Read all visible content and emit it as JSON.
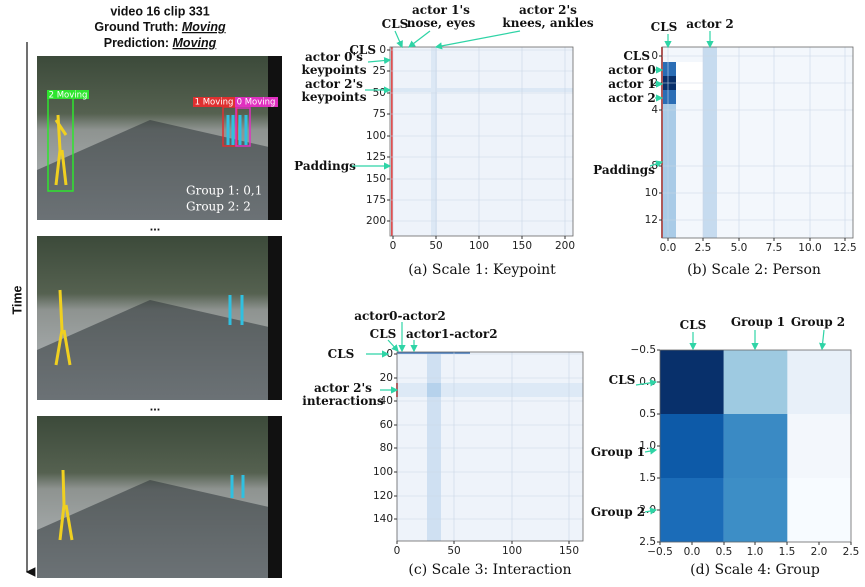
{
  "left": {
    "title": "video 16 clip 331",
    "ground_truth_label": "Ground Truth:",
    "ground_truth": "Moving",
    "prediction_label": "Prediction:",
    "prediction": "Moving",
    "time_label": "Time",
    "ellipses": [
      "...",
      "..."
    ],
    "boxes": [
      "2 Moving",
      "1 Moving",
      "0 Moving"
    ],
    "groups": [
      "Group 1: 0,1",
      "Group 2: 2"
    ]
  },
  "panels": [
    {
      "caption": "(a) Scale 1: Keypoint",
      "xticks": [
        "0",
        "50",
        "100",
        "150",
        "200"
      ],
      "yticks": [
        "0",
        "25",
        "50",
        "75",
        "100",
        "125",
        "150",
        "175",
        "200"
      ],
      "annotations": [
        [
          "CLS"
        ],
        [
          "actor 1's",
          "nose, eyes"
        ],
        [
          "actor 2's",
          "knees, ankles"
        ],
        [
          "CLS"
        ],
        [
          "actor 0's",
          "keypoints"
        ],
        [
          "actor 2's",
          "keypoints"
        ],
        [
          "Paddings"
        ]
      ]
    },
    {
      "caption": "(b) Scale 2: Person",
      "xticks": [
        "0.0",
        "2.5",
        "5.0",
        "7.5",
        "10.0",
        "12.5"
      ],
      "yticks": [
        "0",
        "2",
        "4",
        "8",
        "10",
        "12"
      ],
      "annotations": [
        [
          "CLS"
        ],
        [
          "actor 2"
        ],
        [
          "CLS"
        ],
        [
          "actor 0"
        ],
        [
          "actor 1"
        ],
        [
          "actor 2"
        ],
        [
          "Paddings"
        ]
      ]
    },
    {
      "caption": "(c) Scale 3: Interaction",
      "xticks": [
        "0",
        "50",
        "100",
        "150"
      ],
      "yticks": [
        "0",
        "20",
        "40",
        "60",
        "80",
        "100",
        "120",
        "140"
      ],
      "annotations": [
        [
          "actor0-actor2"
        ],
        [
          "CLS"
        ],
        [
          "actor1-actor2"
        ],
        [
          "CLS"
        ],
        [
          "actor 2's",
          "interactions"
        ]
      ]
    },
    {
      "caption": "(d) Scale 4: Group",
      "xticks": [
        "−0.5",
        "0.0",
        "0.5",
        "1.0",
        "1.5",
        "2.0",
        "2.5"
      ],
      "yticks": [
        "−0.5",
        "0.0",
        "0.5",
        "1.0",
        "1.5",
        "2.0",
        "2.5"
      ],
      "annotations": [
        [
          "CLS"
        ],
        [
          "Group 1"
        ],
        [
          "Group 2"
        ],
        [
          "CLS"
        ],
        [
          "Group 1"
        ],
        [
          "Group 2"
        ]
      ]
    }
  ]
}
